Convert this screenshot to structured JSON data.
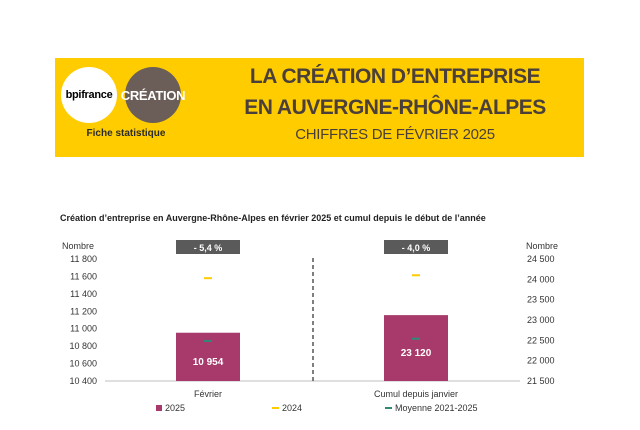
{
  "header": {
    "logo_left": "bpifrance",
    "logo_right": "CRÉATION",
    "subtitle": "Fiche statistique",
    "title_line1": "LA CRÉATION D’ENTREPRISE",
    "title_line2": "EN AUVERGNE-RHÔNE-ALPES",
    "title_line3": "CHIFFRES DE FÉVRIER 2025"
  },
  "colors": {
    "banner": "#ffcc00",
    "bar_2025": "#a83a6b",
    "marker_2024": "#ffcc00",
    "marker_avg": "#2e8b73",
    "badge": "#5a5a5a"
  },
  "chart_data": {
    "type": "bar",
    "title": "Création d’entreprise en Auvergne-Rhône-Alpes en février 2025 et cumul depuis le début de l’année",
    "categories": [
      "Février",
      "Cumul depuis janvier"
    ],
    "left_axis": {
      "label": "Nombre",
      "ylim": [
        10400,
        11800
      ],
      "ticks": [
        "10 400",
        "10 600",
        "10 800",
        "11 000",
        "11 200",
        "11 400",
        "11 600",
        "11 800"
      ],
      "tick_values": [
        10400,
        10600,
        10800,
        11000,
        11200,
        11400,
        11600,
        11800
      ]
    },
    "right_axis": {
      "label": "Nombre",
      "ylim": [
        21500,
        24500
      ],
      "ticks": [
        "21 500",
        "22 000",
        "22 500",
        "23 000",
        "23 500",
        "24 000",
        "24 500"
      ],
      "tick_values": [
        21500,
        22000,
        22500,
        23000,
        23500,
        24000,
        24500
      ]
    },
    "series": [
      {
        "name": "2025",
        "values": [
          10954,
          23120
        ],
        "labels": [
          "10 954",
          "23 120"
        ]
      },
      {
        "name": "2024",
        "values": [
          11580,
          24100
        ]
      },
      {
        "name": "Moyenne 2021-2025",
        "values": [
          10860,
          22540
        ]
      }
    ],
    "variations": [
      "- 5,4 %",
      "- 4,0 %"
    ],
    "legend_position": "bottom",
    "grid": false
  }
}
